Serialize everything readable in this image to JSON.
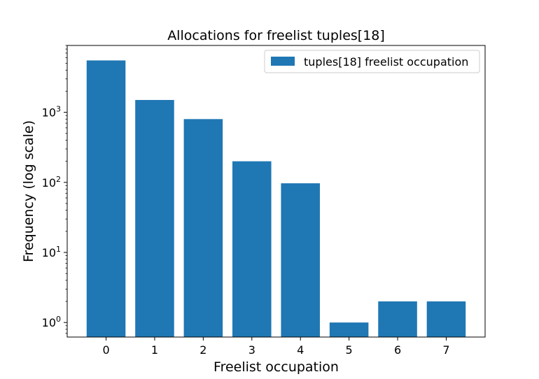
{
  "chart_data": {
    "type": "bar",
    "title": "Allocations for freelist tuples[18]",
    "xlabel": "Freelist occupation",
    "ylabel": "Frequency (log scale)",
    "yscale": "log",
    "ylim": [
      0.62,
      9000
    ],
    "categories": [
      "0",
      "1",
      "2",
      "3",
      "4",
      "5",
      "6",
      "7"
    ],
    "series": [
      {
        "name": "tuples[18] freelist occupation",
        "values": [
          5500,
          1500,
          800,
          200,
          97,
          1,
          2,
          2
        ],
        "color": "#1f77b4"
      }
    ],
    "y_ticks": [
      {
        "base": "10",
        "exp": "0",
        "value": 1
      },
      {
        "base": "10",
        "exp": "1",
        "value": 10
      },
      {
        "base": "10",
        "exp": "2",
        "value": 100
      },
      {
        "base": "10",
        "exp": "3",
        "value": 1000
      }
    ],
    "grid": false,
    "legend": "top-right"
  }
}
